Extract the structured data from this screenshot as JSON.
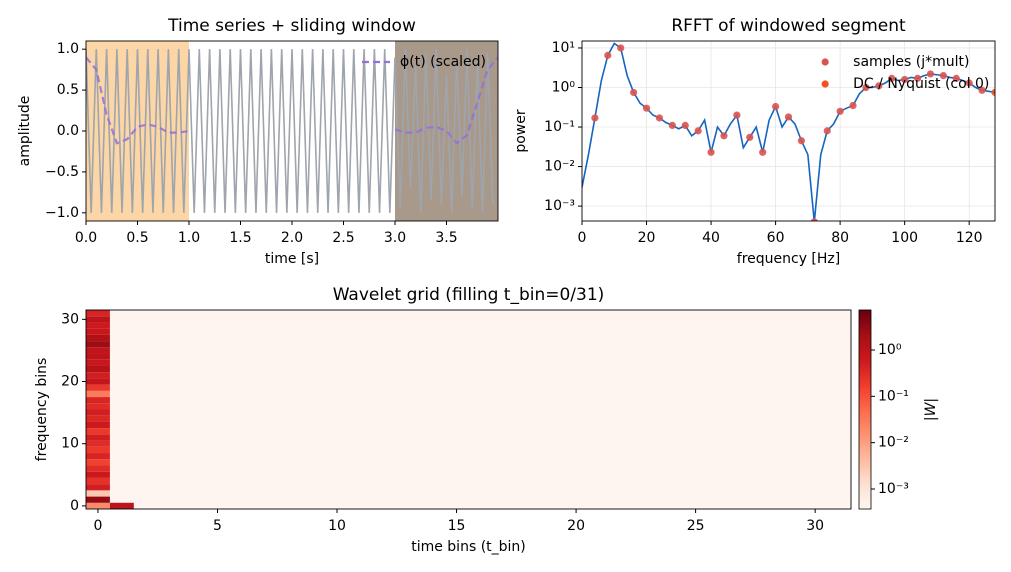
{
  "chart_data": [
    {
      "type": "line",
      "title": "Time series + sliding window",
      "xlabel": "time [s]",
      "ylabel": "amplitude",
      "xlim": [
        0,
        4
      ],
      "ylim": [
        -1.1,
        1.1
      ],
      "xticks": [
        {
          "value": 0,
          "label": "0.0"
        },
        0.5,
        {
          "value": 1,
          "label": "1.0"
        },
        1.5,
        {
          "value": 2,
          "label": "2.0"
        },
        2.5,
        {
          "value": 3,
          "label": "3.0"
        },
        3.5
      ],
      "yticks": [
        {
          "value": -1,
          "label": "−1.0"
        },
        {
          "value": -0.5,
          "label": "−0.5"
        },
        {
          "value": 0,
          "label": "0.0"
        },
        0.5,
        {
          "value": 1,
          "label": "1.0"
        }
      ],
      "grid": false,
      "legend": "upper right",
      "spans": [
        {
          "from": 0,
          "to": 1,
          "color": "#fcd6a6"
        },
        {
          "from": 3,
          "to": 4,
          "color": "#a8998a"
        }
      ],
      "series": [
        {
          "color": "#9ea5ad",
          "style": "solid",
          "x": [
            0,
            0.05,
            0.1,
            0.15,
            0.2,
            0.25,
            0.3,
            0.35,
            0.4,
            0.45,
            0.5,
            0.55,
            0.6,
            0.65,
            0.7,
            0.75,
            0.8,
            0.85,
            0.9,
            0.95,
            1,
            1.05,
            1.1,
            1.15,
            1.2,
            1.25,
            1.3,
            1.35,
            1.4,
            1.45,
            1.5,
            1.55,
            1.6,
            1.65,
            1.7,
            1.75,
            1.8,
            1.85,
            1.9,
            1.95,
            2,
            2.05,
            2.1,
            2.15,
            2.2,
            2.25,
            2.3,
            2.35,
            2.4,
            2.45,
            2.5,
            2.55,
            2.6,
            2.65,
            2.7,
            2.75,
            2.8,
            2.85,
            2.9,
            2.95,
            3,
            3.05,
            3.1,
            3.15,
            3.2,
            3.25,
            3.3,
            3.35,
            3.4,
            3.45,
            3.5,
            3.55,
            3.6,
            3.65,
            3.7,
            3.75,
            3.8,
            3.85,
            3.9,
            3.95
          ],
          "values": [
            1,
            -1,
            1,
            -1,
            1,
            -1,
            1,
            -1,
            1,
            -1,
            1,
            -1,
            1,
            -1,
            1,
            -1,
            1,
            -1,
            1,
            -1,
            1,
            -1,
            1,
            -1,
            1,
            -1,
            1,
            -1,
            1,
            -1,
            1,
            -1,
            1,
            -1,
            1,
            -1,
            1,
            -1,
            1,
            -1,
            1,
            -1,
            1,
            -1,
            1,
            -1,
            1,
            -1,
            1,
            -1,
            1,
            -1,
            1,
            -1,
            1,
            -1,
            1,
            -1,
            1,
            -1,
            0.9,
            -0.95,
            1,
            -0.7,
            0.8,
            -1,
            0.95,
            -0.85,
            1,
            -0.9,
            0.7,
            -1,
            0.9,
            -0.8,
            1,
            -0.95,
            0.85,
            -1,
            0.95,
            -0.9
          ]
        },
        {
          "name": "ϕ(t) (scaled)",
          "color": "#9370db",
          "style": "dashed",
          "x": [
            0,
            0.1,
            0.2,
            0.3,
            0.4,
            0.5,
            0.6,
            0.7,
            0.8,
            0.9,
            1,
            1.1,
            1.2,
            1.3,
            1.4,
            1.5,
            1.6,
            1.7,
            1.8,
            1.9,
            2,
            2.1,
            2.2,
            2.3,
            2.4,
            2.5,
            2.6,
            2.7,
            2.8,
            2.9,
            3,
            3.1,
            3.2,
            3.3,
            3.4,
            3.5,
            3.6,
            3.7,
            3.8,
            3.9,
            4
          ],
          "values": [
            0.9,
            0.75,
            0.2,
            -0.15,
            -0.1,
            0.05,
            0.08,
            0.05,
            -0.02,
            -0.02,
            0,
            null,
            null,
            null,
            null,
            null,
            null,
            null,
            null,
            null,
            null,
            null,
            null,
            null,
            null,
            null,
            null,
            null,
            null,
            null,
            0.02,
            -0.02,
            -0.02,
            0.04,
            0.05,
            0,
            -0.15,
            -0.05,
            0.35,
            0.75,
            0.9
          ]
        }
      ]
    },
    {
      "type": "line",
      "title": "RFFT of windowed segment",
      "xlabel": "frequency [Hz]",
      "ylabel": "power",
      "xlim": [
        0,
        128
      ],
      "ylim": [
        0.00042,
        15
      ],
      "ylog": true,
      "xticks": [
        0,
        20,
        40,
        60,
        80,
        100,
        120
      ],
      "yticks": [
        {
          "value": 0.001,
          "label": "10⁻³"
        },
        {
          "value": 0.01,
          "label": "10⁻²"
        },
        {
          "value": 0.1,
          "label": "10⁻¹"
        },
        {
          "value": 1,
          "label": "10⁰"
        },
        {
          "value": 10,
          "label": "10¹"
        }
      ],
      "grid": true,
      "legend": "upper right",
      "series": [
        {
          "color": "#1565c0",
          "style": "solid",
          "x": [
            0,
            2,
            4,
            6,
            8,
            10,
            12,
            14,
            16,
            18,
            20,
            22,
            24,
            26,
            28,
            30,
            32,
            34,
            36,
            38,
            40,
            42,
            44,
            46,
            48,
            50,
            52,
            54,
            56,
            58,
            60,
            62,
            64,
            66,
            68,
            70,
            72,
            74,
            76,
            78,
            80,
            82,
            84,
            86,
            88,
            90,
            92,
            94,
            96,
            98,
            100,
            102,
            104,
            106,
            108,
            110,
            112,
            114,
            116,
            118,
            120,
            122,
            124,
            126,
            128
          ],
          "values": [
            0.003,
            0.02,
            0.17,
            1.5,
            6.5,
            13,
            10,
            2,
            0.75,
            0.4,
            0.3,
            0.2,
            0.17,
            0.13,
            0.11,
            0.09,
            0.11,
            0.06,
            0.08,
            0.15,
            0.023,
            0.1,
            0.06,
            0.12,
            0.2,
            0.03,
            0.055,
            0.1,
            0.023,
            0.15,
            0.33,
            0.1,
            0.18,
            0.12,
            0.045,
            0.02,
            0.0004,
            0.02,
            0.08,
            0.12,
            0.25,
            0.3,
            0.35,
            0.7,
            1,
            1,
            1.1,
            1.3,
            1.7,
            1.5,
            1.6,
            1.8,
            1.7,
            2,
            2.2,
            2.1,
            2,
            1.8,
            1.7,
            1.5,
            1.3,
            1,
            0.85,
            0.8,
            0.75
          ]
        },
        {
          "name": "samples (j*mult)",
          "color": "#d9534f",
          "style": "markers",
          "x": [
            4,
            8,
            12,
            16,
            20,
            24,
            28,
            32,
            36,
            40,
            44,
            48,
            52,
            56,
            60,
            64,
            68,
            72,
            76,
            80,
            84,
            88,
            92,
            96,
            100,
            104,
            108,
            112,
            116,
            120,
            124
          ],
          "values": [
            0.17,
            6.5,
            10,
            0.75,
            0.3,
            0.17,
            0.11,
            0.11,
            0.08,
            0.023,
            0.06,
            0.2,
            0.055,
            0.023,
            0.33,
            0.18,
            0.045,
            0.0004,
            0.08,
            0.25,
            0.35,
            1,
            1.1,
            1.7,
            1.6,
            1.7,
            2.2,
            2,
            1.7,
            1.3,
            0.85
          ]
        },
        {
          "name": "DC / Nyquist (col 0)",
          "color": "#f4511e",
          "style": "markers",
          "x": [
            128
          ],
          "values": [
            0.75
          ]
        }
      ]
    },
    {
      "type": "heatmap",
      "title": "Wavelet grid (filling t_bin=0/31)",
      "xlabel": "time bins (t_bin)",
      "ylabel": "frequency bins",
      "xlim": [
        -0.5,
        31.5
      ],
      "ylim": [
        -0.5,
        31.5
      ],
      "xticks": [
        0,
        5,
        10,
        15,
        20,
        25,
        30
      ],
      "yticks": [
        0,
        10,
        20,
        30
      ],
      "cmap": "Reds",
      "zlim": [
        0.00037,
        7.3
      ],
      "zlog": true,
      "zlabel": "|W|",
      "zticks": [
        {
          "value": 0.001,
          "label": "10⁻³"
        },
        {
          "value": 0.01,
          "label": "10⁻²"
        },
        {
          "value": 0.1,
          "label": "10⁻¹"
        },
        {
          "value": 1,
          "label": "10⁰"
        }
      ],
      "x": [
        0,
        0,
        0,
        0,
        0,
        0,
        0,
        0,
        0,
        0,
        0,
        0,
        0,
        0,
        0,
        0,
        0,
        0,
        0,
        0,
        0,
        0,
        0,
        0,
        0,
        0,
        0,
        0,
        0,
        0,
        0,
        0,
        1
      ],
      "y": [
        0,
        1,
        2,
        3,
        4,
        5,
        6,
        7,
        8,
        9,
        10,
        11,
        12,
        13,
        14,
        15,
        16,
        17,
        18,
        19,
        20,
        21,
        22,
        23,
        24,
        25,
        26,
        27,
        28,
        29,
        30,
        31,
        0
      ],
      "values": [
        0.02,
        3,
        0.003,
        0.5,
        0.25,
        0.6,
        0.3,
        0.15,
        0.4,
        0.2,
        0.3,
        0.5,
        0.2,
        0.6,
        0.35,
        0.5,
        0.3,
        0.4,
        0.03,
        0.2,
        0.8,
        0.5,
        1.2,
        0.7,
        1,
        0.9,
        2.5,
        1.5,
        0.7,
        0.6,
        1,
        0.4,
        1
      ]
    }
  ]
}
